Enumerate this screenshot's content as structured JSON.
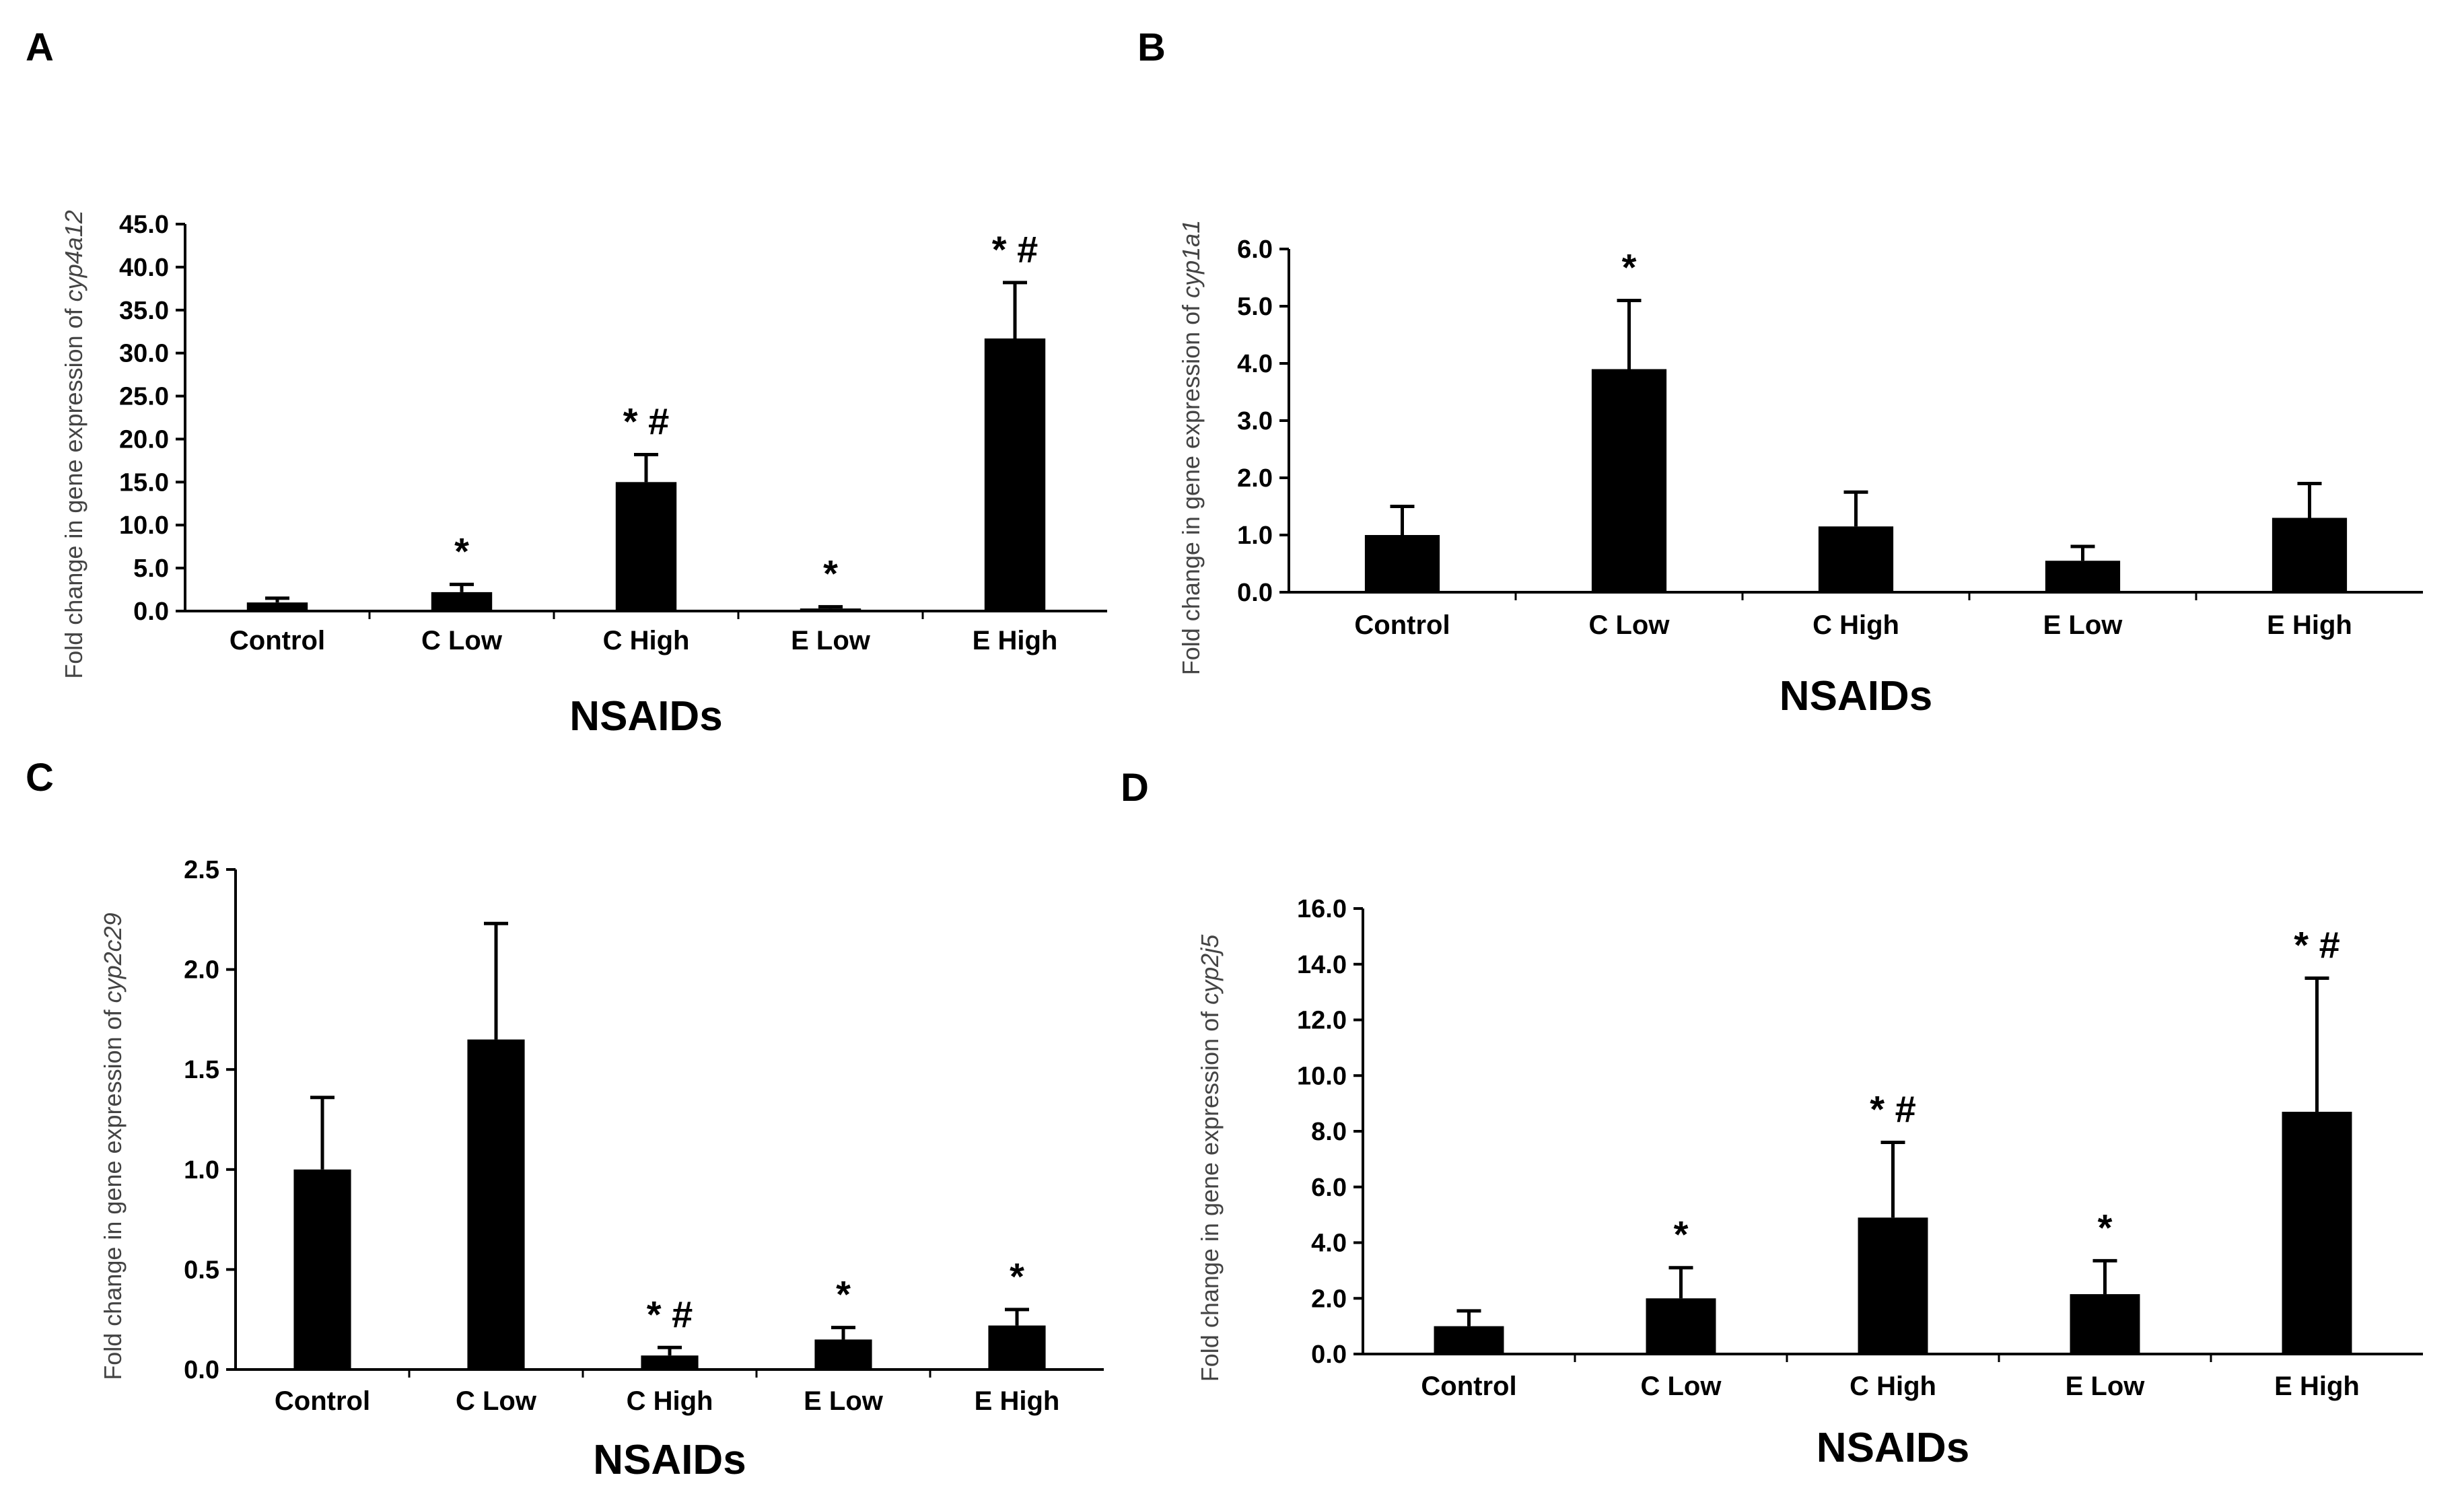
{
  "chart_data": [
    {
      "panel": "A",
      "type": "bar",
      "categories": [
        "Control",
        "C Low",
        "C High",
        "E Low",
        "E High"
      ],
      "values": [
        1.0,
        2.2,
        15.0,
        0.3,
        31.7
      ],
      "errors": [
        0.5,
        0.9,
        3.2,
        0.2,
        6.5
      ],
      "annotations": [
        "",
        "*",
        "* #",
        "*",
        "* #"
      ],
      "ylim": [
        0,
        45
      ],
      "yticks": [
        "0.0",
        "5.0",
        "10.0",
        "15.0",
        "20.0",
        "25.0",
        "30.0",
        "35.0",
        "40.0",
        "45.0"
      ],
      "xlabel": "NSAIDs",
      "ylabel_prefix": "Fold change in gene expression of ",
      "ylabel_gene": "cyp4a12"
    },
    {
      "panel": "B",
      "type": "bar",
      "categories": [
        "Control",
        "C Low",
        "C High",
        "E Low",
        "E High"
      ],
      "values": [
        1.0,
        3.9,
        1.15,
        0.55,
        1.3
      ],
      "errors": [
        0.5,
        1.2,
        0.6,
        0.25,
        0.6
      ],
      "annotations": [
        "",
        "*",
        "",
        "",
        ""
      ],
      "ylim": [
        0,
        6
      ],
      "yticks": [
        "0.0",
        "1.0",
        "2.0",
        "3.0",
        "4.0",
        "5.0",
        "6.0"
      ],
      "xlabel": "NSAIDs",
      "ylabel_prefix": "Fold change in gene expression of ",
      "ylabel_gene": "cyp1a1"
    },
    {
      "panel": "C",
      "type": "bar",
      "categories": [
        "Control",
        "C Low",
        "C High",
        "E Low",
        "E High"
      ],
      "values": [
        1.0,
        1.65,
        0.07,
        0.15,
        0.22
      ],
      "errors": [
        0.36,
        0.58,
        0.04,
        0.06,
        0.08
      ],
      "annotations": [
        "",
        "",
        "* #",
        "*",
        "*"
      ],
      "ylim": [
        0,
        2.5
      ],
      "yticks": [
        "0.0",
        "0.5",
        "1.0",
        "1.5",
        "2.0",
        "2.5"
      ],
      "xlabel": "NSAIDs",
      "ylabel_prefix": "Fold change in gene expression of ",
      "ylabel_gene": "cyp2c29"
    },
    {
      "panel": "D",
      "type": "bar",
      "categories": [
        "Control",
        "C Low",
        "C High",
        "E Low",
        "E High"
      ],
      "values": [
        1.0,
        2.0,
        4.9,
        2.15,
        8.7
      ],
      "errors": [
        0.55,
        1.1,
        2.7,
        1.2,
        4.8
      ],
      "annotations": [
        "",
        "*",
        "* #",
        "*",
        "* #"
      ],
      "ylim": [
        0,
        16
      ],
      "yticks": [
        "0.0",
        "2.0",
        "4.0",
        "6.0",
        "8.0",
        "10.0",
        "12.0",
        "14.0",
        "16.0"
      ],
      "xlabel": "NSAIDs",
      "ylabel_prefix": "Fold change in gene expression of ",
      "ylabel_gene": "cyp2j5"
    }
  ]
}
